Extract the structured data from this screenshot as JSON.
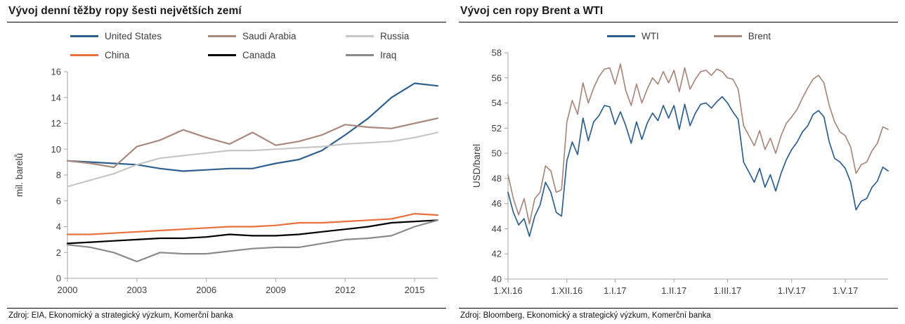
{
  "sources": {
    "left": "Zdroj: EIA, Ekonomický a strategický výzkum, Komerční banka",
    "right": "Zdroj: Bloomberg, Ekonomický a strategický výzkum, Komerční banka"
  },
  "chart_data": [
    {
      "type": "line",
      "title": "Vývoj denní těžby ropy šesti největších zemí",
      "xlabel": "",
      "ylabel": "mil. barelů",
      "ylim": [
        0,
        16
      ],
      "yticks": [
        0,
        2,
        4,
        6,
        8,
        10,
        12,
        14,
        16
      ],
      "x": [
        2000,
        2001,
        2002,
        2003,
        2004,
        2005,
        2006,
        2007,
        2008,
        2009,
        2010,
        2011,
        2012,
        2013,
        2014,
        2015,
        2016
      ],
      "xtick_indices": [
        0,
        3,
        6,
        9,
        12,
        15
      ],
      "xtick_labels": [
        "2000",
        "2003",
        "2006",
        "2009",
        "2012",
        "2015"
      ],
      "grid": false,
      "legend_position": "top",
      "series": [
        {
          "name": "United States",
          "color": "#2E5F8F",
          "values": [
            9.1,
            9.0,
            8.9,
            8.8,
            8.5,
            8.3,
            8.4,
            8.5,
            8.5,
            8.9,
            9.2,
            9.9,
            11.1,
            12.4,
            14.0,
            15.1,
            14.9
          ]
        },
        {
          "name": "Saudi Arabia",
          "color": "#A9897D",
          "values": [
            9.1,
            8.9,
            8.6,
            10.2,
            10.7,
            11.5,
            10.9,
            10.4,
            11.3,
            10.3,
            10.6,
            11.1,
            11.9,
            11.7,
            11.6,
            12.0,
            12.4
          ]
        },
        {
          "name": "Russia",
          "color": "#C7C7C7",
          "values": [
            7.1,
            7.6,
            8.1,
            8.8,
            9.3,
            9.5,
            9.7,
            9.9,
            9.9,
            10.0,
            10.1,
            10.2,
            10.4,
            10.5,
            10.6,
            10.9,
            11.3
          ]
        },
        {
          "name": "China",
          "color": "#E8713F",
          "values": [
            3.4,
            3.4,
            3.5,
            3.6,
            3.7,
            3.8,
            3.9,
            4.0,
            4.0,
            4.1,
            4.3,
            4.3,
            4.4,
            4.5,
            4.6,
            5.0,
            4.9
          ]
        },
        {
          "name": "Canada",
          "color": "#000000",
          "values": [
            2.7,
            2.8,
            2.9,
            3.0,
            3.1,
            3.1,
            3.2,
            3.4,
            3.3,
            3.3,
            3.4,
            3.6,
            3.8,
            4.0,
            4.3,
            4.4,
            4.5
          ]
        },
        {
          "name": "Iraq",
          "color": "#8A8A8A",
          "values": [
            2.6,
            2.4,
            2.0,
            1.3,
            2.0,
            1.9,
            1.9,
            2.1,
            2.3,
            2.4,
            2.4,
            2.7,
            3.0,
            3.1,
            3.3,
            4.0,
            4.5
          ]
        }
      ]
    },
    {
      "type": "line",
      "title": "Vývoj cen ropy Brent a WTI",
      "xlabel": "",
      "ylabel": "USD/barel",
      "ylim": [
        40,
        58
      ],
      "yticks": [
        40,
        42,
        44,
        46,
        48,
        50,
        52,
        54,
        56,
        58
      ],
      "n_points": 72,
      "xtick_indices": [
        0,
        11,
        20,
        31,
        41,
        53,
        63
      ],
      "xtick_labels": [
        "1.XI.16",
        "1.XII.16",
        "1.I.17",
        "1.II.17",
        "1.III.17",
        "1.IV.17",
        "1.V.17"
      ],
      "grid": false,
      "legend_position": "top",
      "series": [
        {
          "name": "WTI",
          "color": "#2E5F8F",
          "values": [
            46.9,
            45.3,
            44.3,
            44.8,
            43.4,
            45.0,
            45.9,
            47.7,
            46.9,
            45.3,
            45.0,
            49.4,
            50.9,
            49.9,
            52.8,
            51.0,
            52.5,
            53.0,
            53.8,
            53.7,
            52.3,
            53.3,
            52.2,
            50.8,
            52.5,
            51.1,
            52.4,
            53.2,
            52.6,
            53.8,
            52.8,
            53.8,
            51.9,
            53.9,
            52.2,
            53.2,
            53.9,
            54.0,
            53.6,
            54.1,
            54.5,
            54.0,
            53.3,
            52.7,
            49.3,
            48.5,
            47.7,
            48.8,
            47.3,
            48.3,
            47.0,
            48.4,
            49.5,
            50.3,
            50.9,
            51.7,
            52.2,
            53.1,
            53.4,
            52.9,
            50.9,
            49.6,
            49.3,
            48.8,
            47.7,
            45.5,
            46.2,
            46.4,
            47.3,
            47.8,
            48.9,
            48.6
          ]
        },
        {
          "name": "Brent",
          "color": "#A9897D",
          "values": [
            48.3,
            46.4,
            45.1,
            46.4,
            44.4,
            46.4,
            46.9,
            49.0,
            48.6,
            46.9,
            47.1,
            52.5,
            54.2,
            53.1,
            55.6,
            54.0,
            55.2,
            56.1,
            56.7,
            56.8,
            55.5,
            57.1,
            55.0,
            53.8,
            55.5,
            54.0,
            55.1,
            56.0,
            55.5,
            56.5,
            55.6,
            56.6,
            54.9,
            56.8,
            55.1,
            55.9,
            56.5,
            56.6,
            56.2,
            56.7,
            56.5,
            56.0,
            55.9,
            55.1,
            52.2,
            51.4,
            50.6,
            51.8,
            50.3,
            51.2,
            50.0,
            51.4,
            52.4,
            52.9,
            53.5,
            54.4,
            55.2,
            55.9,
            56.2,
            55.6,
            53.8,
            52.5,
            51.7,
            51.4,
            50.5,
            48.4,
            49.1,
            49.3,
            50.2,
            50.8,
            52.1,
            51.9
          ]
        }
      ]
    }
  ]
}
